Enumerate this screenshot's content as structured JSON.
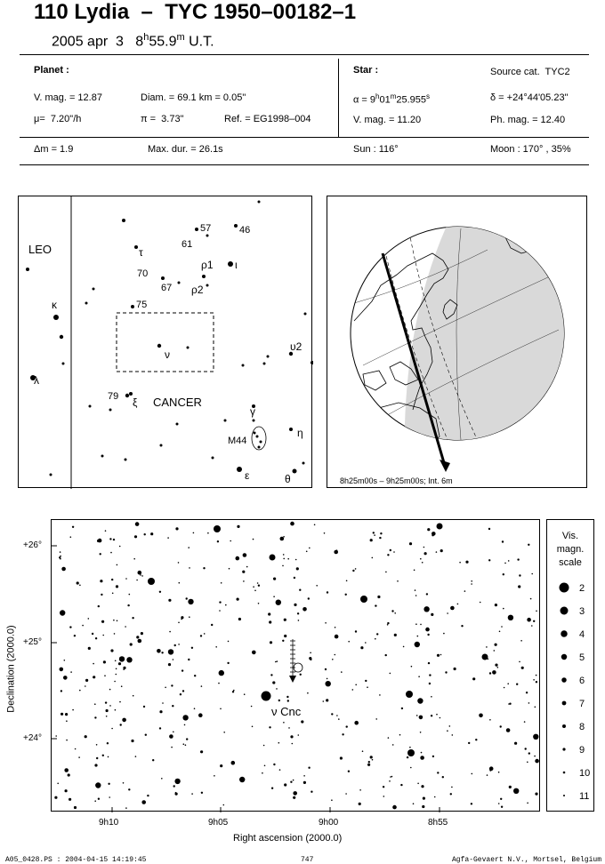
{
  "header": {
    "title": "110 Lydia  –  TYC 1950–00182–1",
    "date": "2005 apr  3",
    "time_h": "8",
    "time_h_sup": "h",
    "time_m": "55.9",
    "time_m_sup": "m",
    "time_suffix": "U.T."
  },
  "planet": {
    "heading": "Planet :",
    "vmag": "V. mag. = 12.87",
    "diam": "Diam. = 69.1 km = 0.05\"",
    "mu": "μ=  7.20\"/h",
    "pi": "π =  3.73\"",
    "ref": "Ref. = EG1998–004"
  },
  "star": {
    "heading": "Star :",
    "source": "Source cat.  TYC2",
    "alpha_pre": "α = 9",
    "alpha_h": "h",
    "alpha_mid": "01",
    "alpha_m": "m",
    "alpha_sec": "25.955",
    "alpha_s": "s",
    "delta": "δ = +24°44'05.23\"",
    "vmag": "V. mag. = 11.20",
    "phmag": "Ph. mag. = 12.40"
  },
  "event": {
    "dm": "Δm = 1.9",
    "maxdur": "Max. dur. = 26.1s",
    "sun": "Sun : 116°",
    "moon": "Moon : 170° , 35%"
  },
  "finder_labels": {
    "leo": "LEO",
    "cancer": "CANCER",
    "kappa": "κ",
    "lambda": "λ",
    "tau": "τ",
    "rho1": "ρ1",
    "iota": "ι",
    "rho2": "ρ2",
    "nu": "ν",
    "upsilon2": "υ2",
    "xi": "ξ",
    "gamma": "γ",
    "eta": "η",
    "epsilon": "ε",
    "theta": "θ",
    "m44": "M44",
    "n57": "57",
    "n46": "46",
    "n61": "61",
    "n70": "70",
    "n67": "67",
    "n75": "75",
    "n79": "79"
  },
  "globe": {
    "caption": "8h25m00s –  9h25m00s; Int.  6m"
  },
  "chart": {
    "yticks": [
      "+26°",
      "+25°",
      "+24°"
    ],
    "xticks": [
      "9h10",
      "9h05",
      "9h00",
      "8h55"
    ],
    "xlabel": "Right ascension (2000.0)",
    "ylabel": "Declination (2000.0)",
    "star_label": "ν Cnc",
    "scale_title": [
      "Vis.",
      "magn.",
      "scale"
    ],
    "scale_mags": [
      "2",
      "3",
      "4",
      "5",
      "6",
      "7",
      "8",
      "9",
      "10",
      "11"
    ]
  },
  "footer": {
    "left": "A05_0428.PS : 2004-04-15 14:19:45",
    "center": "747",
    "right": "Agfa-Gevaert N.V., Mortsel, Belgium"
  }
}
